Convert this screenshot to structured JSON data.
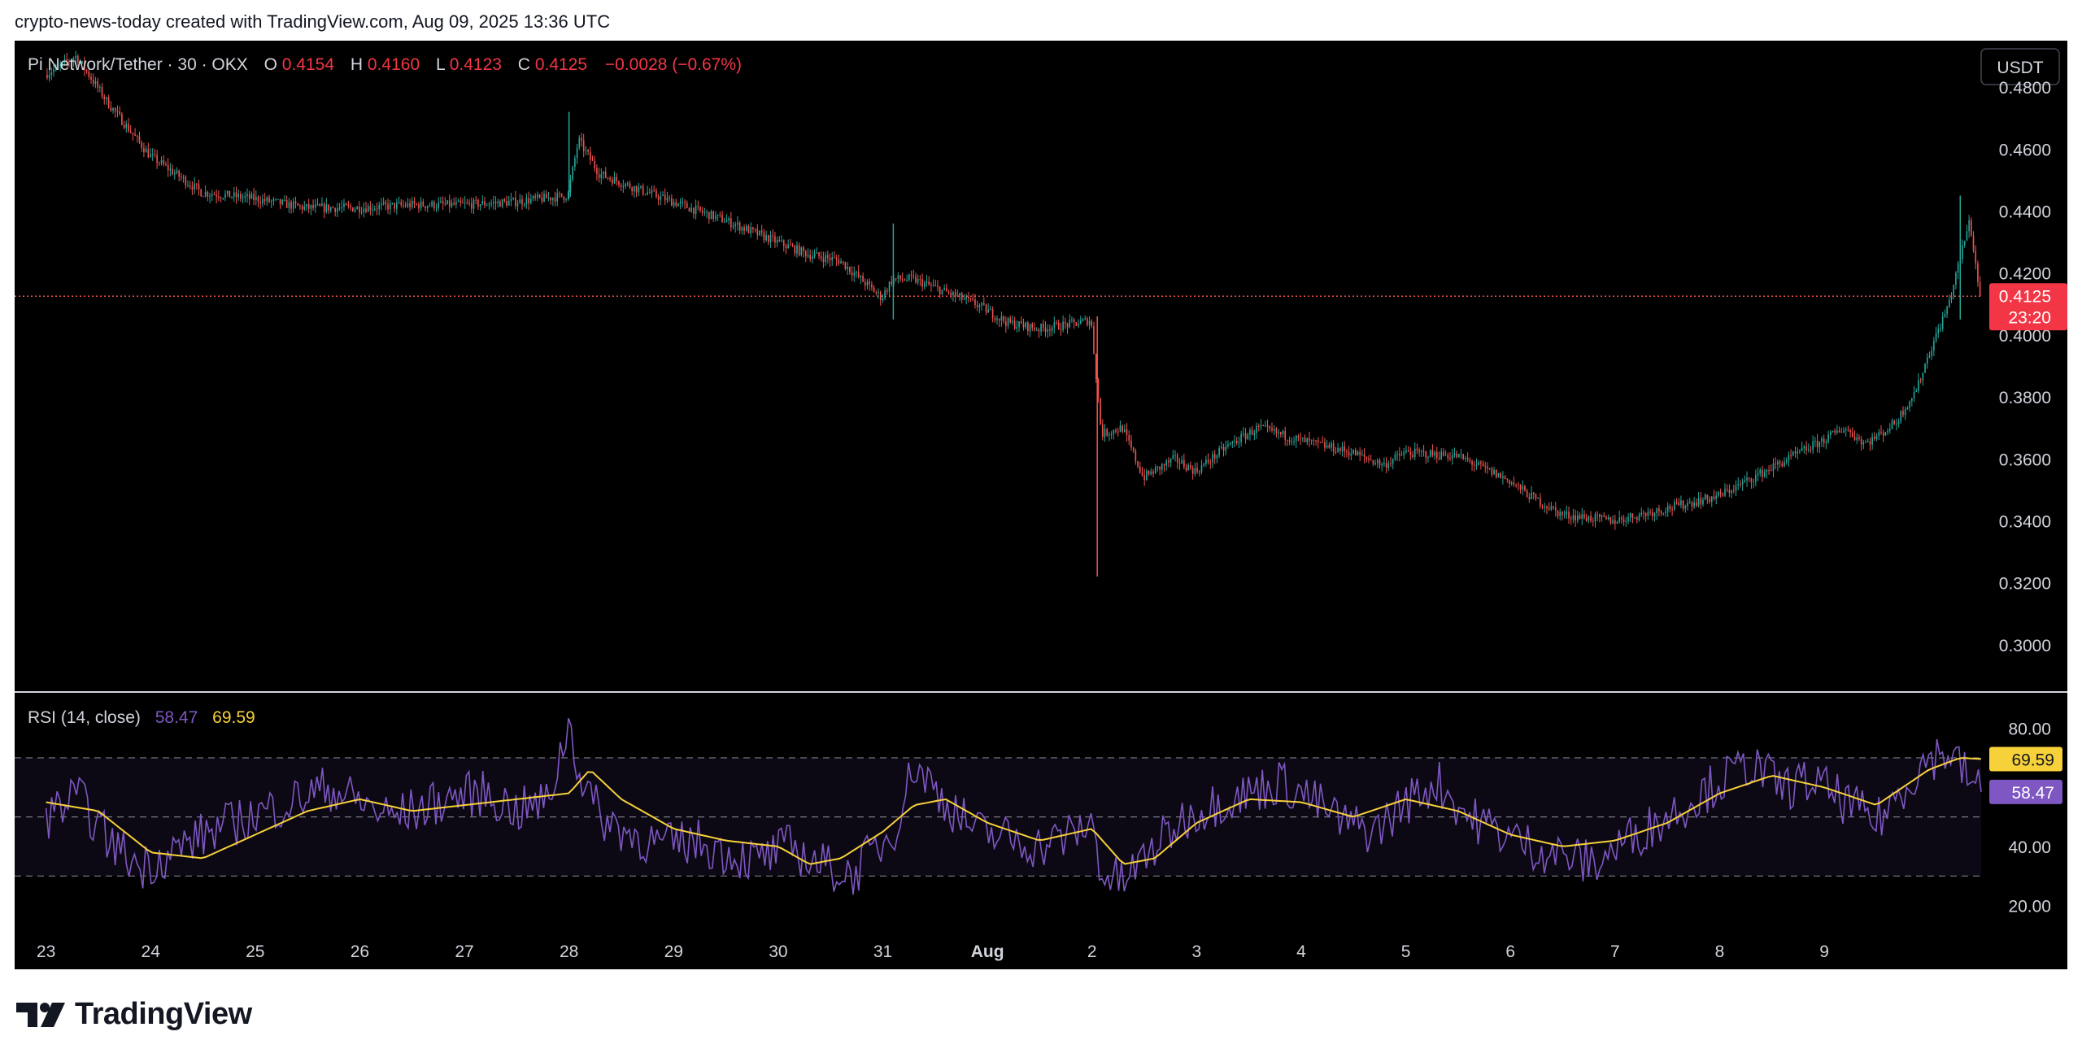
{
  "attribution": "crypto-news-today created with TradingView.com, Aug 09, 2025 13:36 UTC",
  "brand": {
    "name": "TradingView"
  },
  "colors": {
    "background": "#000000",
    "up": "#26a69a",
    "down": "#ef5350",
    "rsi": "#7e57c2",
    "rsi_ma": "#f7d13a",
    "axis_text": "#d1d4dc",
    "price_label": "#f23645"
  },
  "header": {
    "symbol": "Pi Network/Tether · 30 · OKX",
    "o_label": "O",
    "o_value": "0.4154",
    "h_label": "H",
    "h_value": "0.4160",
    "l_label": "L",
    "l_value": "0.4123",
    "c_label": "C",
    "c_value": "0.4125",
    "change": "−0.0028 (−0.67%)"
  },
  "currency_button": "USDT",
  "price_axis": {
    "ticks": [
      "0.4800",
      "0.4600",
      "0.4400",
      "0.4200",
      "0.4000",
      "0.3800",
      "0.3600",
      "0.3400",
      "0.3200",
      "0.3000"
    ],
    "current_price": "0.4125",
    "countdown": "23:20"
  },
  "rsi_panel": {
    "title": "RSI (14, close)",
    "value": "58.47",
    "ma_value": "69.59",
    "ticks": [
      "80.00",
      "40.00",
      "20.00"
    ],
    "bands": [
      70,
      50,
      30
    ]
  },
  "time_axis": {
    "labels": [
      "23",
      "24",
      "25",
      "26",
      "27",
      "28",
      "29",
      "30",
      "31",
      "Aug",
      "2",
      "3",
      "4",
      "5",
      "6",
      "7",
      "8",
      "9"
    ]
  },
  "chart_data": [
    {
      "type": "line",
      "series": [
        {
          "name": "Pi Network/Tether · 30 · OKX",
          "x": [
            0,
            0.3,
            0.6,
            1.0,
            1.5,
            2.0,
            2.5,
            3.0,
            3.5,
            4.0,
            4.5,
            5.0,
            5.1,
            5.3,
            5.6,
            6.0,
            6.5,
            7.0,
            7.3,
            7.6,
            8.0,
            8.1,
            8.3,
            8.6,
            8.9,
            9.2,
            9.5,
            9.9,
            10.0,
            10.1,
            10.3,
            10.5,
            10.8,
            11.0,
            11.3,
            11.6,
            12.0,
            12.5,
            12.8,
            13.0,
            13.5,
            14.0,
            14.2,
            14.5,
            15.0,
            15.5,
            16.0,
            16.5,
            17.0,
            17.2,
            17.4,
            17.55
          ],
          "values": [
            0.484,
            0.49,
            0.475,
            0.458,
            0.446,
            0.444,
            0.441,
            0.441,
            0.442,
            0.442,
            0.443,
            0.445,
            0.463,
            0.452,
            0.448,
            0.443,
            0.437,
            0.43,
            0.426,
            0.424,
            0.412,
            0.418,
            0.418,
            0.414,
            0.41,
            0.404,
            0.402,
            0.404,
            0.405,
            0.368,
            0.37,
            0.354,
            0.36,
            0.356,
            0.364,
            0.37,
            0.366,
            0.362,
            0.358,
            0.362,
            0.361,
            0.353,
            0.348,
            0.342,
            0.34,
            0.344,
            0.348,
            0.357,
            0.366,
            0.37,
            0.365,
            0.368
          ],
          "x2": [
            17.55,
            17.7,
            17.9,
            18.0,
            18.2,
            18.4,
            18.5
          ],
          "values2": [
            0.368,
            0.372,
            0.383,
            0.393,
            0.41,
            0.437,
            0.4125
          ]
        }
      ],
      "xlim": [
        -0.3,
        18.5
      ],
      "ylim": [
        0.285,
        0.495
      ],
      "grid": false
    },
    {
      "type": "line",
      "title": "RSI (14, close)",
      "series": [
        {
          "name": "RSI",
          "x": [
            0,
            0.3,
            0.6,
            0.9,
            1.2,
            1.5,
            1.8,
            2.1,
            2.4,
            2.7,
            3.0,
            3.3,
            3.6,
            3.9,
            4.2,
            4.5,
            4.8,
            5.0,
            5.1,
            5.3,
            5.6,
            5.9,
            6.2,
            6.5,
            6.8,
            7.1,
            7.4,
            7.7,
            7.9,
            8.1,
            8.3,
            8.6,
            8.9,
            9.2,
            9.5,
            9.8,
            10.0,
            10.1,
            10.3,
            10.6,
            10.9,
            11.2,
            11.5,
            11.8,
            12.1,
            12.4,
            12.7,
            13.0,
            13.3,
            13.6,
            13.9,
            14.2,
            14.5,
            14.8,
            15.1,
            15.4,
            15.7,
            16.0,
            16.3,
            16.6,
            16.9,
            17.2,
            17.5,
            17.8,
            18.0,
            18.2,
            18.4,
            18.5
          ],
          "values": [
            50,
            57,
            42,
            33,
            38,
            44,
            48,
            52,
            56,
            60,
            55,
            50,
            53,
            57,
            58,
            52,
            55,
            82,
            65,
            50,
            44,
            40,
            42,
            38,
            35,
            40,
            34,
            30,
            38,
            45,
            68,
            55,
            45,
            43,
            40,
            44,
            48,
            30,
            28,
            40,
            50,
            55,
            58,
            62,
            56,
            48,
            45,
            55,
            62,
            50,
            45,
            40,
            37,
            34,
            42,
            48,
            55,
            62,
            68,
            60,
            62,
            55,
            48,
            62,
            70,
            72,
            62,
            58.47
          ]
        },
        {
          "name": "RSI-based MA",
          "x": [
            0,
            0.5,
            1.0,
            1.5,
            2.0,
            2.5,
            3.0,
            3.5,
            4.0,
            4.5,
            5.0,
            5.2,
            5.5,
            6.0,
            6.5,
            7.0,
            7.3,
            7.6,
            8.0,
            8.3,
            8.6,
            9.0,
            9.5,
            10.0,
            10.3,
            10.6,
            11.0,
            11.5,
            12.0,
            12.5,
            13.0,
            13.5,
            14.0,
            14.5,
            15.0,
            15.5,
            16.0,
            16.5,
            17.0,
            17.5,
            18.0,
            18.3,
            18.5
          ],
          "values": [
            55,
            52,
            38,
            36,
            44,
            52,
            56,
            52,
            54,
            56,
            58,
            66,
            56,
            46,
            42,
            40,
            34,
            36,
            45,
            54,
            56,
            48,
            42,
            46,
            34,
            36,
            48,
            56,
            55,
            50,
            56,
            52,
            44,
            40,
            42,
            48,
            58,
            64,
            60,
            54,
            66,
            70,
            69.59
          ]
        }
      ],
      "xlim": [
        -0.3,
        18.5
      ],
      "ylim": [
        10,
        92
      ],
      "grid": false
    }
  ]
}
